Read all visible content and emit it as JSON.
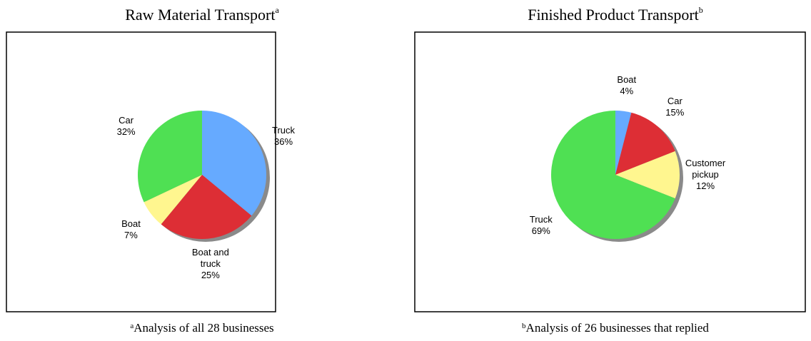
{
  "chart_data": [
    {
      "type": "pie",
      "title": "Raw Material Transport",
      "title_note": "a",
      "footnote": "Analysis of all 28 businesses",
      "categories": [
        "Truck",
        "Boat and truck",
        "Boat",
        "Car"
      ],
      "values": [
        36,
        25,
        7,
        32
      ],
      "value_labels": [
        "36%",
        "25%",
        "7%",
        "32%"
      ],
      "colors": [
        "#66aaff",
        "#dd2e35",
        "#fff68f",
        "#4fe053"
      ]
    },
    {
      "type": "pie",
      "title": "Finished Product Transport",
      "title_note": "b",
      "footnote": "Analysis of 26 businesses that replied",
      "categories": [
        "Boat",
        "Car",
        "Customer pickup",
        "Truck"
      ],
      "values": [
        4,
        15,
        12,
        69
      ],
      "value_labels": [
        "4%",
        "15%",
        "12%",
        "69%"
      ],
      "colors": [
        "#66aaff",
        "#dd2e35",
        "#fff68f",
        "#4fe053"
      ]
    }
  ]
}
